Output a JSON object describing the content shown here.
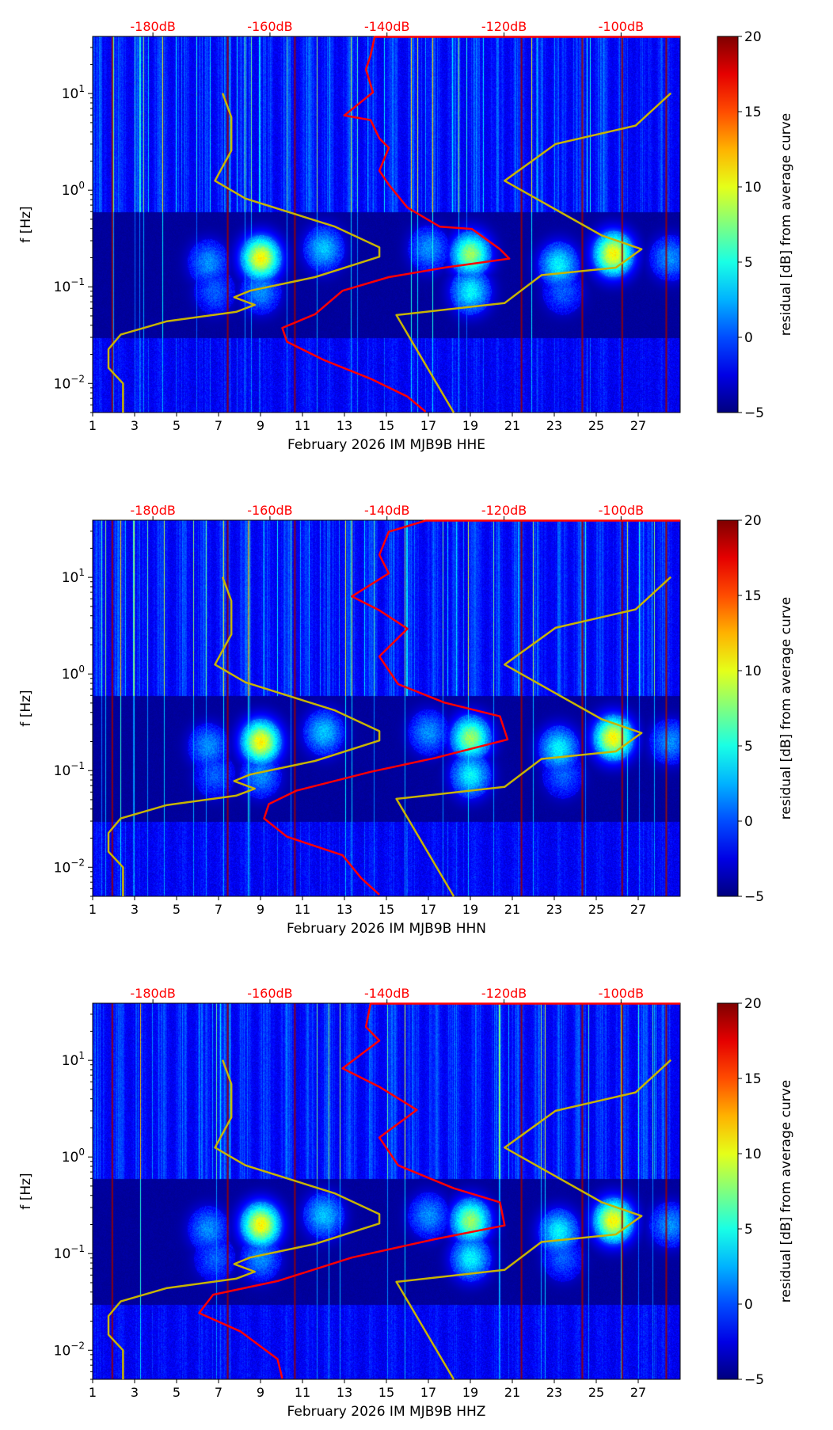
{
  "chart_data": {
    "type": "heatmap",
    "common": {
      "x_ticks": [
        "1",
        "3",
        "5",
        "7",
        "9",
        "11",
        "13",
        "15",
        "17",
        "19",
        "21",
        "23",
        "25",
        "27"
      ],
      "x_tick_values": [
        1,
        3,
        5,
        7,
        9,
        11,
        13,
        15,
        17,
        19,
        21,
        23,
        25,
        27
      ],
      "xlim": [
        1,
        29
      ],
      "ylabel": "f [Hz]",
      "yscale": "log",
      "ylim": [
        0.005,
        39
      ],
      "y_ticks": [
        {
          "base": "10",
          "exp": "−2",
          "value": 0.01
        },
        {
          "base": "10",
          "exp": "−1",
          "value": 0.1
        },
        {
          "base": "10",
          "exp": "0",
          "value": 1
        },
        {
          "base": "10",
          "exp": "1",
          "value": 10
        }
      ],
      "top_axis_ticks": [
        "-180dB",
        "-160dB",
        "-140dB",
        "-120dB",
        "-100dB"
      ],
      "top_axis_values": [
        -180,
        -160,
        -140,
        -120,
        -100
      ],
      "top_axis_lim": [
        -190.3,
        -89.9
      ],
      "top_axis_color": "#ff0000",
      "colorbar_label": "residual [dB] from average curve",
      "colorbar_ticks": [
        "−5",
        "0",
        "5",
        "10",
        "15",
        "20"
      ],
      "colorbar_values": [
        -5,
        0,
        5,
        10,
        15,
        20
      ],
      "colorbar_lim": [
        -5,
        20
      ],
      "colormap": "jet",
      "low_noise_model": {
        "color": "#c8b400",
        "points_db_hz": [
          [
            -168.1,
            10.08
          ],
          [
            -166.6,
            5.69
          ],
          [
            -166.6,
            2.57
          ],
          [
            -169.4,
            1.25
          ],
          [
            -164.2,
            0.82
          ],
          [
            -148.9,
            0.42
          ],
          [
            -141.3,
            0.256
          ],
          [
            -141.3,
            0.205
          ],
          [
            -152.3,
            0.126
          ],
          [
            -163.4,
            0.091
          ],
          [
            -166.1,
            0.078
          ],
          [
            -162.6,
            0.065
          ],
          [
            -165.8,
            0.055
          ],
          [
            -177.6,
            0.044
          ],
          [
            -185.5,
            0.032
          ],
          [
            -187.6,
            0.0226
          ],
          [
            -187.6,
            0.0145
          ],
          [
            -185.1,
            0.01
          ],
          [
            -185.1,
            0.005
          ]
        ]
      },
      "high_noise_model": {
        "color": "#c8b400",
        "points_db_hz": [
          [
            -91.5,
            10.08
          ],
          [
            -97.5,
            4.66
          ],
          [
            -111.2,
            3.0
          ],
          [
            -119.9,
            1.25
          ],
          [
            -103.3,
            0.34
          ],
          [
            -96.5,
            0.245
          ],
          [
            -100.9,
            0.158
          ],
          [
            -113.6,
            0.132
          ],
          [
            -119.9,
            0.068
          ],
          [
            -138.4,
            0.051
          ],
          [
            -128.6,
            0.005
          ]
        ]
      }
    },
    "panels": [
      {
        "xlabel": "February 2026 IM MJB9B  HHE",
        "average_curve": {
          "color": "#ff0000",
          "points_db_hz": [
            [
              -89.9,
              38.6
            ],
            [
              -142.1,
              38.6
            ],
            [
              -142.8,
              24.8
            ],
            [
              -143.6,
              17.8
            ],
            [
              -142.4,
              10.3
            ],
            [
              -147.3,
              5.93
            ],
            [
              -142.8,
              5.32
            ],
            [
              -141.3,
              3.43
            ],
            [
              -139.7,
              2.75
            ],
            [
              -141.3,
              1.59
            ],
            [
              -139.7,
              1.14
            ],
            [
              -136.5,
              0.66
            ],
            [
              -131.0,
              0.42
            ],
            [
              -125.5,
              0.397
            ],
            [
              -120.7,
              0.245
            ],
            [
              -119.1,
              0.196
            ],
            [
              -130.2,
              0.158
            ],
            [
              -139.7,
              0.126
            ],
            [
              -147.6,
              0.091
            ],
            [
              -152.3,
              0.052
            ],
            [
              -157.9,
              0.0376
            ],
            [
              -157.1,
              0.027
            ],
            [
              -150.8,
              0.0175
            ],
            [
              -142.8,
              0.0112
            ],
            [
              -136.5,
              0.0073
            ],
            [
              -133.4,
              0.0051
            ]
          ]
        }
      },
      {
        "xlabel": "February 2026 IM MJB9B  HHN",
        "average_curve": {
          "color": "#ff0000",
          "points_db_hz": [
            [
              -89.9,
              38.6
            ],
            [
              -133.4,
              38.6
            ],
            [
              -139.7,
              29.6
            ],
            [
              -141.3,
              17.1
            ],
            [
              -139.7,
              11.0
            ],
            [
              -146.0,
              6.35
            ],
            [
              -141.3,
              4.56
            ],
            [
              -136.5,
              2.94
            ],
            [
              -141.3,
              1.52
            ],
            [
              -138.1,
              0.785
            ],
            [
              -130.2,
              0.506
            ],
            [
              -120.7,
              0.364
            ],
            [
              -119.4,
              0.21
            ],
            [
              -131.8,
              0.135
            ],
            [
              -142.8,
              0.097
            ],
            [
              -155.5,
              0.062
            ],
            [
              -160.2,
              0.045
            ],
            [
              -161.0,
              0.032
            ],
            [
              -157.1,
              0.0207
            ],
            [
              -147.6,
              0.0133
            ],
            [
              -144.4,
              0.0077
            ],
            [
              -141.3,
              0.0052
            ]
          ]
        }
      },
      {
        "xlabel": "February 2026 IM MJB9B  HHZ",
        "average_curve": {
          "color": "#ff0000",
          "points_db_hz": [
            [
              -89.9,
              38.6
            ],
            [
              -142.8,
              38.6
            ],
            [
              -143.6,
              22.2
            ],
            [
              -141.3,
              16.0
            ],
            [
              -147.6,
              8.25
            ],
            [
              -141.3,
              5.32
            ],
            [
              -134.9,
              3.07
            ],
            [
              -141.3,
              1.59
            ],
            [
              -138.1,
              0.82
            ],
            [
              -128.6,
              0.474
            ],
            [
              -120.7,
              0.34
            ],
            [
              -119.9,
              0.196
            ],
            [
              -131.8,
              0.141
            ],
            [
              -146.0,
              0.091
            ],
            [
              -158.7,
              0.052
            ],
            [
              -169.7,
              0.0376
            ],
            [
              -172.1,
              0.0243
            ],
            [
              -165.0,
              0.0156
            ],
            [
              -158.7,
              0.0081
            ],
            [
              -157.9,
              0.0051
            ]
          ]
        }
      }
    ]
  }
}
